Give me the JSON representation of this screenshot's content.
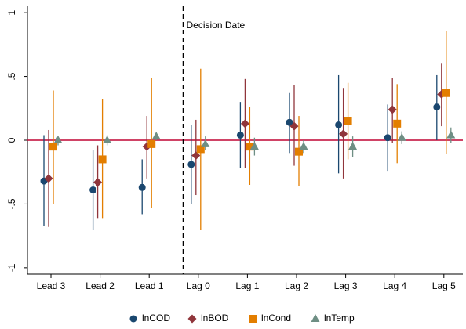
{
  "chart_data": {
    "type": "coefplot",
    "annotation": "Decision Date",
    "categories": [
      "Lead 3",
      "Lead 2",
      "Lead 1",
      "Lag 0",
      "Lag 1",
      "Lag 2",
      "Lag 3",
      "Lag 4",
      "Lag 5"
    ],
    "series": [
      {
        "name": "lnCOD",
        "color": "#1a476f",
        "marker": "circle",
        "values": [
          -0.32,
          -0.39,
          -0.37,
          -0.19,
          0.04,
          0.14,
          0.12,
          0.02,
          0.26
        ],
        "lower": [
          -0.67,
          -0.7,
          -0.58,
          -0.5,
          -0.22,
          -0.1,
          -0.26,
          -0.24,
          0.0
        ],
        "upper": [
          0.04,
          -0.08,
          -0.15,
          0.12,
          0.3,
          0.37,
          0.51,
          0.28,
          0.51
        ]
      },
      {
        "name": "lnBOD",
        "color": "#90353b",
        "marker": "diamond",
        "values": [
          -0.3,
          -0.33,
          -0.05,
          -0.12,
          0.13,
          0.11,
          0.05,
          0.24,
          0.36
        ],
        "lower": [
          -0.68,
          -0.61,
          -0.3,
          -0.43,
          -0.22,
          -0.2,
          -0.3,
          -0.02,
          0.11
        ],
        "upper": [
          0.08,
          -0.04,
          0.19,
          0.16,
          0.48,
          0.43,
          0.41,
          0.49,
          0.6
        ]
      },
      {
        "name": "lnCond",
        "color": "#e37e00",
        "marker": "square",
        "values": [
          -0.05,
          -0.15,
          -0.03,
          -0.07,
          -0.05,
          -0.09,
          0.15,
          0.13,
          0.37
        ],
        "lower": [
          -0.5,
          -0.61,
          -0.53,
          -0.7,
          -0.35,
          -0.36,
          -0.15,
          -0.18,
          -0.11
        ],
        "upper": [
          0.39,
          0.32,
          0.49,
          0.56,
          0.26,
          0.19,
          0.45,
          0.44,
          0.86
        ]
      },
      {
        "name": "lnTemp",
        "color": "#6e8e84",
        "marker": "triangle",
        "values": [
          0.0,
          0.0,
          0.03,
          -0.03,
          -0.05,
          -0.05,
          -0.05,
          0.02,
          0.04
        ],
        "lower": [
          -0.04,
          -0.04,
          0.0,
          -0.08,
          -0.12,
          -0.1,
          -0.13,
          -0.03,
          -0.02
        ],
        "upper": [
          0.03,
          0.04,
          0.06,
          0.03,
          0.02,
          0.0,
          0.03,
          0.07,
          0.1
        ]
      }
    ],
    "reference_line": 0,
    "reference_color": "#c10534",
    "ylim": [
      -1.05,
      1.05
    ],
    "yticks": [
      {
        "value": -1,
        "label": "-1"
      },
      {
        "value": -0.5,
        "label": "-.5"
      },
      0,
      {
        "value": 0.5,
        "label": ".5"
      },
      1
    ],
    "legend": "bottom"
  }
}
